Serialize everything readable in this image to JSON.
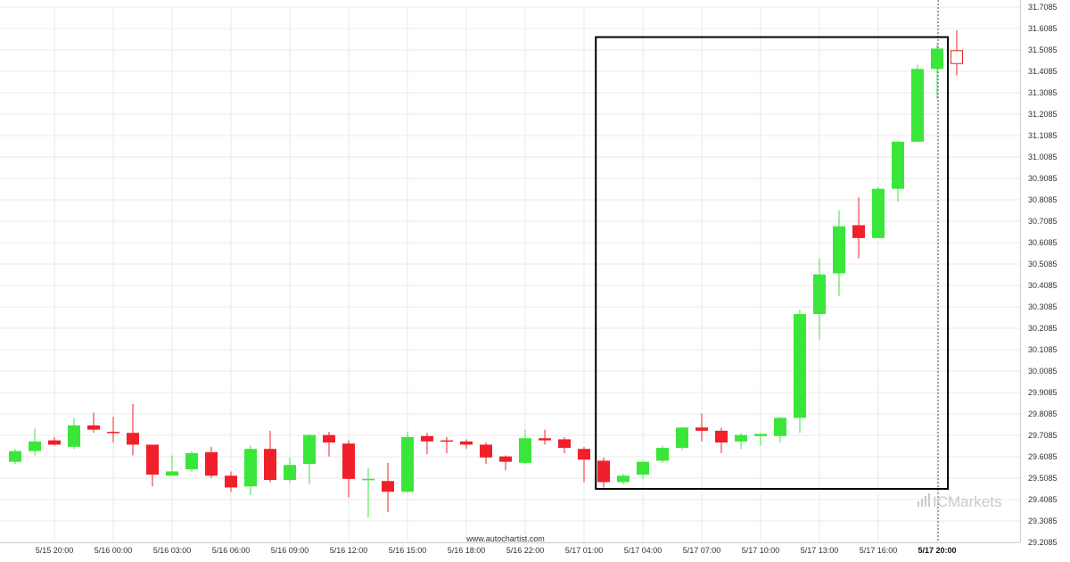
{
  "chart_data": {
    "type": "candlestick",
    "title": "",
    "xlabel": "",
    "ylabel": "",
    "ylim": [
      29.2085,
      31.7085
    ],
    "y_ticks": [
      "31.7085",
      "31.6085",
      "31.5085",
      "31.4085",
      "31.3085",
      "31.2085",
      "31.1085",
      "31.0085",
      "30.9085",
      "30.8085",
      "30.7085",
      "30.6085",
      "30.5085",
      "30.4085",
      "30.3085",
      "30.2085",
      "30.1085",
      "30.0085",
      "29.9085",
      "29.8085",
      "29.7085",
      "29.6085",
      "29.5085",
      "29.4085",
      "29.3085",
      "29.2085"
    ],
    "x_ticks": [
      {
        "label": "5/15 20:00",
        "bar": 2
      },
      {
        "label": "5/16 00:00",
        "bar": 5
      },
      {
        "label": "5/16 03:00",
        "bar": 8
      },
      {
        "label": "5/16 06:00",
        "bar": 11
      },
      {
        "label": "5/16 09:00",
        "bar": 14
      },
      {
        "label": "5/16 12:00",
        "bar": 17
      },
      {
        "label": "5/16 15:00",
        "bar": 20
      },
      {
        "label": "5/16 18:00",
        "bar": 23
      },
      {
        "label": "5/16 22:00",
        "bar": 26
      },
      {
        "label": "5/17 01:00",
        "bar": 29
      },
      {
        "label": "5/17 04:00",
        "bar": 32
      },
      {
        "label": "5/17 07:00",
        "bar": 35
      },
      {
        "label": "5/17 10:00",
        "bar": 38
      },
      {
        "label": "5/17 13:00",
        "bar": 41
      },
      {
        "label": "5/17 16:00",
        "bar": 44
      },
      {
        "label": "5/17 20:00",
        "bar": 47,
        "bold": true
      }
    ],
    "candles": [
      {
        "o": 29.585,
        "h": 29.645,
        "l": 29.575,
        "c": 29.635
      },
      {
        "o": 29.635,
        "h": 29.74,
        "l": 29.615,
        "c": 29.68
      },
      {
        "o": 29.685,
        "h": 29.7,
        "l": 29.66,
        "c": 29.665
      },
      {
        "o": 29.655,
        "h": 29.79,
        "l": 29.645,
        "c": 29.755
      },
      {
        "o": 29.755,
        "h": 29.815,
        "l": 29.72,
        "c": 29.735
      },
      {
        "o": 29.725,
        "h": 29.795,
        "l": 29.675,
        "c": 29.72
      },
      {
        "o": 29.72,
        "h": 29.855,
        "l": 29.615,
        "c": 29.665
      },
      {
        "o": 29.665,
        "h": 29.665,
        "l": 29.47,
        "c": 29.525
      },
      {
        "o": 29.52,
        "h": 29.615,
        "l": 29.52,
        "c": 29.54
      },
      {
        "o": 29.55,
        "h": 29.635,
        "l": 29.535,
        "c": 29.625
      },
      {
        "o": 29.63,
        "h": 29.655,
        "l": 29.51,
        "c": 29.52
      },
      {
        "o": 29.52,
        "h": 29.54,
        "l": 29.445,
        "c": 29.465
      },
      {
        "o": 29.47,
        "h": 29.66,
        "l": 29.43,
        "c": 29.645
      },
      {
        "o": 29.645,
        "h": 29.73,
        "l": 29.49,
        "c": 29.5
      },
      {
        "o": 29.5,
        "h": 29.605,
        "l": 29.485,
        "c": 29.57
      },
      {
        "o": 29.575,
        "h": 29.715,
        "l": 29.48,
        "c": 29.71
      },
      {
        "o": 29.71,
        "h": 29.725,
        "l": 29.61,
        "c": 29.675
      },
      {
        "o": 29.67,
        "h": 29.685,
        "l": 29.42,
        "c": 29.505
      },
      {
        "o": 29.505,
        "h": 29.555,
        "l": 29.325,
        "c": 29.505
      },
      {
        "o": 29.495,
        "h": 29.58,
        "l": 29.35,
        "c": 29.445
      },
      {
        "o": 29.445,
        "h": 29.725,
        "l": 29.44,
        "c": 29.7
      },
      {
        "o": 29.705,
        "h": 29.72,
        "l": 29.62,
        "c": 29.68
      },
      {
        "o": 29.685,
        "h": 29.7,
        "l": 29.625,
        "c": 29.68
      },
      {
        "o": 29.68,
        "h": 29.69,
        "l": 29.645,
        "c": 29.665
      },
      {
        "o": 29.665,
        "h": 29.675,
        "l": 29.575,
        "c": 29.605
      },
      {
        "o": 29.61,
        "h": 29.615,
        "l": 29.545,
        "c": 29.585
      },
      {
        "o": 29.58,
        "h": 29.735,
        "l": 29.575,
        "c": 29.695
      },
      {
        "o": 29.695,
        "h": 29.735,
        "l": 29.665,
        "c": 29.685
      },
      {
        "o": 29.69,
        "h": 29.7,
        "l": 29.625,
        "c": 29.65
      },
      {
        "o": 29.645,
        "h": 29.655,
        "l": 29.49,
        "c": 29.595
      },
      {
        "o": 29.59,
        "h": 29.605,
        "l": 29.465,
        "c": 29.49
      },
      {
        "o": 29.49,
        "h": 29.53,
        "l": 29.48,
        "c": 29.52
      },
      {
        "o": 29.525,
        "h": 29.59,
        "l": 29.505,
        "c": 29.585
      },
      {
        "o": 29.59,
        "h": 29.66,
        "l": 29.58,
        "c": 29.65
      },
      {
        "o": 29.65,
        "h": 29.745,
        "l": 29.64,
        "c": 29.745
      },
      {
        "o": 29.745,
        "h": 29.81,
        "l": 29.68,
        "c": 29.73
      },
      {
        "o": 29.73,
        "h": 29.745,
        "l": 29.625,
        "c": 29.675
      },
      {
        "o": 29.68,
        "h": 29.72,
        "l": 29.645,
        "c": 29.71
      },
      {
        "o": 29.705,
        "h": 29.72,
        "l": 29.66,
        "c": 29.715
      },
      {
        "o": 29.705,
        "h": 29.795,
        "l": 29.675,
        "c": 29.79
      },
      {
        "o": 29.79,
        "h": 30.295,
        "l": 29.72,
        "c": 30.275
      },
      {
        "o": 30.275,
        "h": 30.535,
        "l": 30.155,
        "c": 30.46
      },
      {
        "o": 30.465,
        "h": 30.76,
        "l": 30.36,
        "c": 30.685
      },
      {
        "o": 30.69,
        "h": 30.82,
        "l": 30.535,
        "c": 30.63
      },
      {
        "o": 30.63,
        "h": 30.87,
        "l": 30.63,
        "c": 30.86
      },
      {
        "o": 30.86,
        "h": 31.085,
        "l": 30.8,
        "c": 31.08
      },
      {
        "o": 31.08,
        "h": 31.44,
        "l": 31.08,
        "c": 31.42
      },
      {
        "o": 31.42,
        "h": 31.535,
        "l": 31.28,
        "c": 31.515
      },
      {
        "o": 31.505,
        "h": 31.6,
        "l": 31.39,
        "c": 31.445
      }
    ],
    "pattern_box": {
      "start_bar": 29.6,
      "end_bar": 47.55,
      "top": 31.5685,
      "bottom": 29.4585
    },
    "current_time_bar": 47.05,
    "colors": {
      "up": "#3be63b",
      "down": "#f0202a",
      "current_up": "#ffffff",
      "current_border": "#f0202a",
      "grid": "#e8e8e8",
      "box": "#000000"
    }
  },
  "footer": {
    "source": "www.autochartist.com"
  },
  "brand": {
    "name": "ICMarkets",
    "bars_icon": "bar-chart-icon"
  }
}
